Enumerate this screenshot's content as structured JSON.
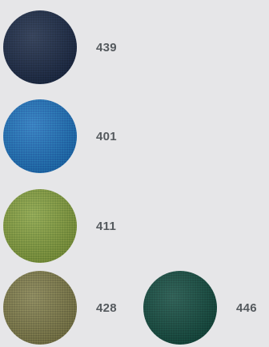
{
  "swatches": [
    {
      "code": "439",
      "color": "#1c2a45"
    },
    {
      "code": "401",
      "color": "#1f6fb8"
    },
    {
      "code": "411",
      "color": "#7f9a3e"
    },
    {
      "code": "428",
      "color": "#7a7748"
    },
    {
      "code": "446",
      "color": "#154a3f"
    }
  ]
}
